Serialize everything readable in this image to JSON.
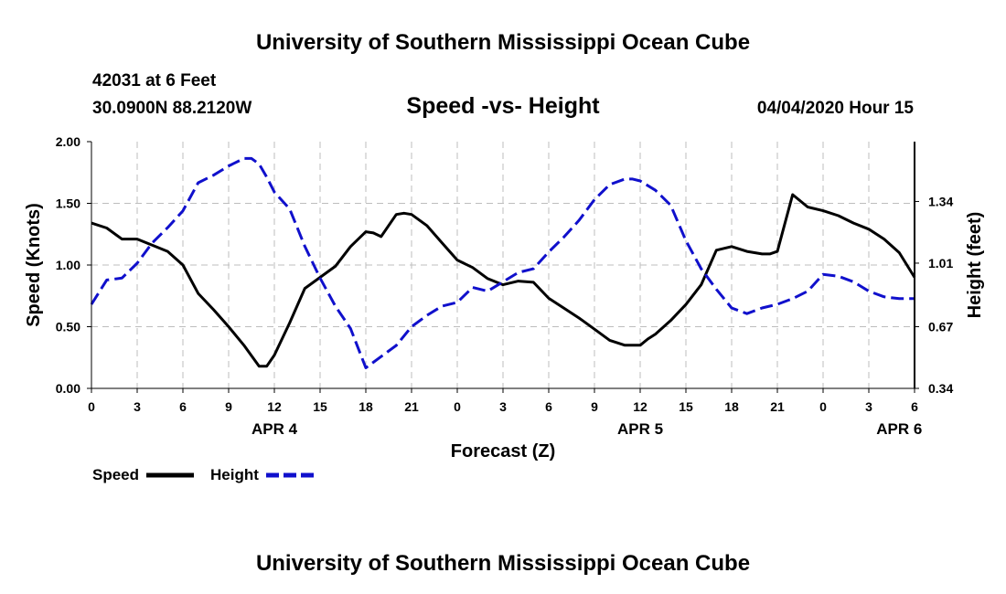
{
  "header": {
    "title_top": "University of Southern Mississippi Ocean Cube",
    "station": "42031 at 6 Feet",
    "coords": "30.0900N 88.2120W",
    "chart_title": "Speed -vs- Height",
    "date": "04/04/2020 Hour 15"
  },
  "footer": {
    "title_bottom": "University of Southern Mississippi Ocean Cube"
  },
  "colors": {
    "speed": "#000000",
    "height": "#1010cc",
    "grid": "#bdbdbd",
    "axis": "#000000"
  },
  "chart_data": {
    "type": "line",
    "xlabel": "Forecast (Z)",
    "ylabel_left": "Speed (Knots)",
    "ylabel_right": "Height (feet)",
    "x_range_hours": [
      0,
      54
    ],
    "x_ticks": [
      0,
      3,
      6,
      9,
      12,
      15,
      18,
      21,
      24,
      27,
      30,
      33,
      36,
      39,
      42,
      45,
      48,
      51,
      54
    ],
    "x_tick_labels": [
      "0",
      "3",
      "6",
      "9",
      "12",
      "15",
      "18",
      "21",
      "0",
      "3",
      "6",
      "9",
      "12",
      "15",
      "18",
      "21",
      "0",
      "3",
      "6"
    ],
    "date_labels": [
      {
        "hour": 12,
        "text": "APR 4"
      },
      {
        "hour": 36,
        "text": "APR 5"
      },
      {
        "hour": 53,
        "text": "APR 6"
      }
    ],
    "ylim_left": [
      0,
      2
    ],
    "y_ticks_left": [
      0,
      0.5,
      1.0,
      1.5,
      2.0
    ],
    "y_tick_labels_left": [
      "0.00",
      "0.50",
      "1.00",
      "1.50",
      "2.00"
    ],
    "ylim_right": [
      0.34,
      1.66
    ],
    "y_ticks_right": [
      0.34,
      0.67,
      1.01,
      1.34
    ],
    "y_tick_labels_right": [
      "0.34",
      "0.67",
      "1.01",
      "1.34"
    ],
    "series": [
      {
        "name": "Speed",
        "axis": "left",
        "style": "solid",
        "x": [
          0,
          1,
          2,
          3,
          4,
          5,
          6,
          7,
          8,
          9,
          10,
          11,
          11.5,
          12,
          13,
          14,
          15,
          16,
          17,
          18,
          18.5,
          19,
          20,
          20.5,
          21,
          22,
          23,
          24,
          25,
          26,
          27,
          28,
          29,
          30,
          31,
          32,
          33,
          34,
          35,
          36,
          36.5,
          37,
          38,
          39,
          40,
          41,
          42,
          43,
          44,
          44.5,
          45,
          46,
          47,
          48,
          49,
          50,
          51,
          52,
          53,
          54
        ],
        "values": [
          1.34,
          1.3,
          1.21,
          1.21,
          1.16,
          1.11,
          1.0,
          0.77,
          0.64,
          0.5,
          0.35,
          0.18,
          0.18,
          0.27,
          0.53,
          0.81,
          0.9,
          0.99,
          1.15,
          1.27,
          1.26,
          1.23,
          1.41,
          1.42,
          1.41,
          1.32,
          1.18,
          1.04,
          0.98,
          0.89,
          0.84,
          0.87,
          0.86,
          0.73,
          0.65,
          0.57,
          0.48,
          0.39,
          0.35,
          0.35,
          0.4,
          0.44,
          0.55,
          0.68,
          0.84,
          1.12,
          1.15,
          1.11,
          1.09,
          1.09,
          1.11,
          1.57,
          1.47,
          1.44,
          1.4,
          1.34,
          1.29,
          1.21,
          1.1,
          0.9
        ]
      },
      {
        "name": "Height",
        "axis": "right",
        "style": "dashed",
        "x": [
          0,
          1,
          2,
          3,
          4,
          5,
          6,
          7,
          8,
          9,
          10,
          10.5,
          11,
          11.5,
          12,
          13,
          14,
          15,
          16,
          17,
          18,
          19,
          20,
          20.5,
          21,
          22,
          23,
          24,
          25,
          26,
          27,
          28,
          29,
          30,
          31,
          32,
          33,
          34,
          35,
          35.5,
          36,
          37,
          38,
          39,
          40,
          41,
          42,
          43,
          44,
          45,
          46,
          47,
          48,
          49,
          50,
          51,
          52,
          53,
          54
        ],
        "values": [
          0.79,
          0.92,
          0.93,
          1.01,
          1.12,
          1.2,
          1.29,
          1.44,
          1.48,
          1.53,
          1.57,
          1.57,
          1.54,
          1.47,
          1.39,
          1.3,
          1.1,
          0.93,
          0.78,
          0.66,
          0.45,
          0.51,
          0.57,
          0.62,
          0.67,
          0.73,
          0.78,
          0.8,
          0.88,
          0.86,
          0.91,
          0.96,
          0.98,
          1.07,
          1.15,
          1.24,
          1.35,
          1.43,
          1.46,
          1.46,
          1.45,
          1.4,
          1.32,
          1.13,
          0.98,
          0.87,
          0.77,
          0.74,
          0.77,
          0.79,
          0.82,
          0.86,
          0.95,
          0.94,
          0.91,
          0.86,
          0.83,
          0.82,
          0.82
        ]
      }
    ],
    "legend": [
      {
        "label": "Speed",
        "style": "solid"
      },
      {
        "label": "Height",
        "style": "dashed"
      }
    ]
  }
}
